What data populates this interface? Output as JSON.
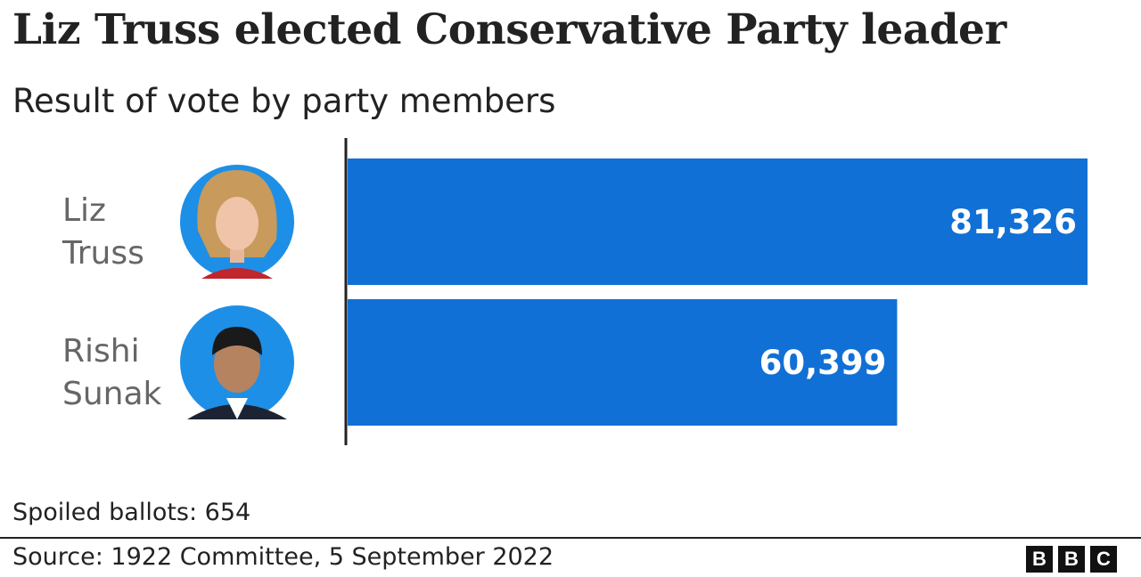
{
  "chart_data": {
    "type": "bar",
    "orientation": "horizontal",
    "title": "Liz Truss elected Conservative Party leader",
    "subtitle": "Result of vote by party members",
    "categories": [
      "Liz Truss",
      "Rishi Sunak"
    ],
    "category_lines": [
      [
        "Liz",
        "Truss"
      ],
      [
        "Rishi",
        "Sunak"
      ]
    ],
    "values": [
      81326,
      60399
    ],
    "value_labels": [
      "81,326",
      "60,399"
    ],
    "xlim": [
      0,
      81326
    ],
    "grid": false,
    "bar_color": "#1170D5",
    "avatar_bg": "#1E8FE6",
    "avatars": [
      "liz-truss-photo",
      "rishi-sunak-photo"
    ]
  },
  "footnote": "Spoiled ballots: 654",
  "source": "Source: 1922 Committee, 5 September 2022",
  "logo": [
    "B",
    "B",
    "C"
  ]
}
